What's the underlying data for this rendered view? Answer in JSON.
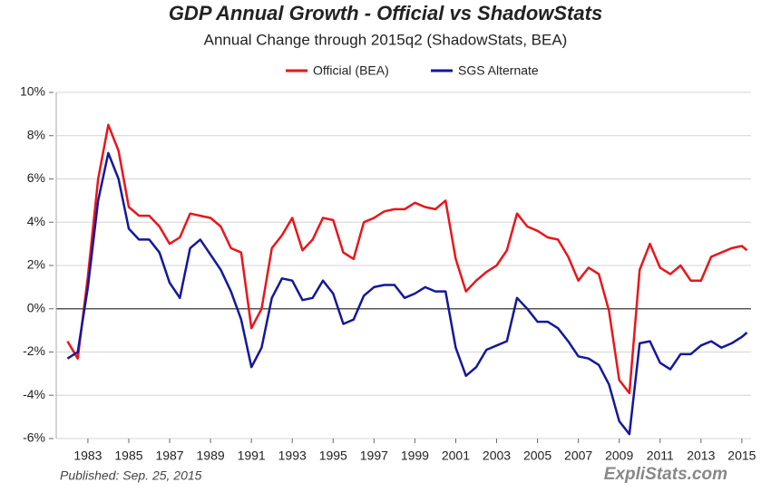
{
  "chart_data": {
    "type": "line",
    "title": "GDP Annual Growth - Official vs ShadowStats",
    "subtitle": "Annual Change through 2015q2  (ShadowStats, BEA)",
    "published": "Published: Sep. 25, 2015",
    "source": "ExpliStats.com",
    "x": [
      1982.0,
      1982.5,
      1983.0,
      1983.5,
      1984.0,
      1984.5,
      1985.0,
      1985.5,
      1986.0,
      1986.5,
      1987.0,
      1987.5,
      1988.0,
      1988.5,
      1989.0,
      1989.5,
      1990.0,
      1990.5,
      1991.0,
      1991.5,
      1992.0,
      1992.5,
      1993.0,
      1993.5,
      1994.0,
      1994.5,
      1995.0,
      1995.5,
      1996.0,
      1996.5,
      1997.0,
      1997.5,
      1998.0,
      1998.5,
      1999.0,
      1999.5,
      2000.0,
      2000.5,
      2001.0,
      2001.5,
      2002.0,
      2002.5,
      2003.0,
      2003.5,
      2004.0,
      2004.5,
      2005.0,
      2005.5,
      2006.0,
      2006.5,
      2007.0,
      2007.5,
      2008.0,
      2008.5,
      2009.0,
      2009.5,
      2010.0,
      2010.5,
      2011.0,
      2011.5,
      2012.0,
      2012.5,
      2013.0,
      2013.5,
      2014.0,
      2014.5,
      2015.0,
      2015.25
    ],
    "series": [
      {
        "name": "Official (BEA)",
        "color": "#e8161b",
        "values": [
          -1.5,
          -2.3,
          1.5,
          6.0,
          8.5,
          7.3,
          4.7,
          4.3,
          4.3,
          3.8,
          3.0,
          3.3,
          4.4,
          4.3,
          4.2,
          3.8,
          2.8,
          2.6,
          -0.9,
          0.0,
          2.8,
          3.4,
          4.2,
          2.7,
          3.2,
          4.2,
          4.1,
          2.6,
          2.3,
          4.0,
          4.2,
          4.5,
          4.6,
          4.6,
          4.9,
          4.7,
          4.6,
          5.0,
          2.3,
          0.8,
          1.3,
          1.7,
          2.0,
          2.7,
          4.4,
          3.8,
          3.6,
          3.3,
          3.2,
          2.4,
          1.3,
          1.9,
          1.6,
          -0.1,
          -3.3,
          -3.9,
          1.8,
          3.0,
          1.9,
          1.6,
          2.0,
          1.3,
          1.3,
          2.4,
          2.6,
          2.8,
          2.9,
          2.7
        ]
      },
      {
        "name": "SGS Alternate",
        "color": "#14189a",
        "values": [
          -2.3,
          -2.0,
          1.0,
          5.0,
          7.2,
          6.0,
          3.7,
          3.2,
          3.2,
          2.6,
          1.2,
          0.5,
          2.8,
          3.2,
          2.5,
          1.8,
          0.8,
          -0.5,
          -2.7,
          -1.8,
          0.5,
          1.4,
          1.3,
          0.4,
          0.5,
          1.3,
          0.7,
          -0.7,
          -0.5,
          0.6,
          1.0,
          1.1,
          1.1,
          0.5,
          0.7,
          1.0,
          0.8,
          0.8,
          -1.8,
          -3.1,
          -2.7,
          -1.9,
          -1.7,
          -1.5,
          0.5,
          0.0,
          -0.6,
          -0.6,
          -0.9,
          -1.5,
          -2.2,
          -2.3,
          -2.6,
          -3.5,
          -5.2,
          -5.8,
          -1.6,
          -1.5,
          -2.5,
          -2.8,
          -2.1,
          -2.1,
          -1.7,
          -1.5,
          -1.8,
          -1.6,
          -1.3,
          -1.1
        ]
      }
    ],
    "xlim": [
      1981.45,
      2015.45
    ],
    "xticks": [
      1983,
      1985,
      1987,
      1989,
      1991,
      1993,
      1995,
      1997,
      1999,
      2001,
      2003,
      2005,
      2007,
      2009,
      2011,
      2013,
      2015
    ],
    "ylim": [
      -6,
      10
    ],
    "yticks": [
      {
        "value": -6,
        "label": "-6%"
      },
      {
        "value": -4,
        "label": "-4%"
      },
      {
        "value": -2,
        "label": "-2%"
      },
      {
        "value": 0,
        "label": "0%"
      },
      {
        "value": 2,
        "label": "2%"
      },
      {
        "value": 4,
        "label": "4%"
      },
      {
        "value": 6,
        "label": "6%"
      },
      {
        "value": 8,
        "label": "8%"
      },
      {
        "value": 10,
        "label": "10%"
      }
    ],
    "grid": true,
    "legend": "top"
  }
}
